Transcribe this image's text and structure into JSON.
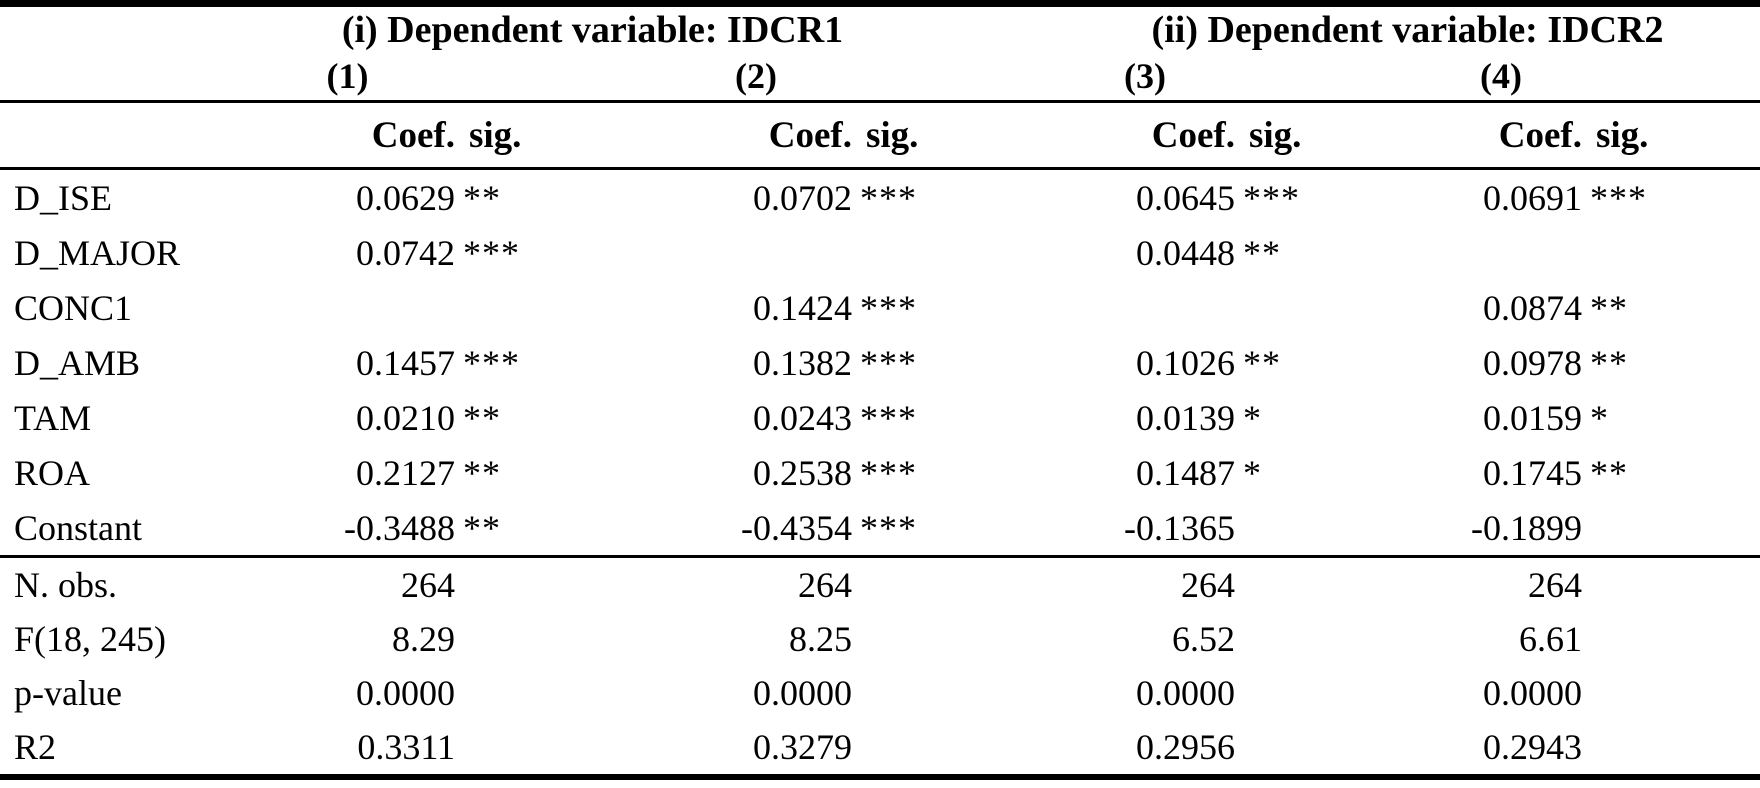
{
  "colors": {
    "text": "#000000",
    "background": "#ffffff"
  },
  "table": {
    "group_headers": [
      {
        "label": "(i) Dependent variable: IDCR1"
      },
      {
        "label": "(ii) Dependent variable: IDCR2"
      }
    ],
    "model_numbers": [
      "(1)",
      "(2)",
      "(3)",
      "(4)"
    ],
    "col_headers": {
      "coef": "Coef.",
      "sig": "sig."
    },
    "coef_rows": [
      {
        "label": "D_ISE",
        "cells": [
          {
            "coef": "0.0629",
            "sig": "**"
          },
          {
            "coef": "0.0702",
            "sig": "***"
          },
          {
            "coef": "0.0645",
            "sig": "***"
          },
          {
            "coef": "0.0691",
            "sig": "***"
          }
        ]
      },
      {
        "label": "D_MAJOR",
        "cells": [
          {
            "coef": "0.0742",
            "sig": "***"
          },
          {
            "coef": "",
            "sig": ""
          },
          {
            "coef": "0.0448",
            "sig": "**"
          },
          {
            "coef": "",
            "sig": ""
          }
        ]
      },
      {
        "label": "CONC1",
        "cells": [
          {
            "coef": "",
            "sig": ""
          },
          {
            "coef": "0.1424",
            "sig": "***"
          },
          {
            "coef": "",
            "sig": ""
          },
          {
            "coef": "0.0874",
            "sig": "**"
          }
        ]
      },
      {
        "label": "D_AMB",
        "cells": [
          {
            "coef": "0.1457",
            "sig": "***"
          },
          {
            "coef": "0.1382",
            "sig": "***"
          },
          {
            "coef": "0.1026",
            "sig": "**"
          },
          {
            "coef": "0.0978",
            "sig": "**"
          }
        ]
      },
      {
        "label": "TAM",
        "cells": [
          {
            "coef": "0.0210",
            "sig": "**"
          },
          {
            "coef": "0.0243",
            "sig": "***"
          },
          {
            "coef": "0.0139",
            "sig": "*"
          },
          {
            "coef": "0.0159",
            "sig": "*"
          }
        ]
      },
      {
        "label": "ROA",
        "cells": [
          {
            "coef": "0.2127",
            "sig": "**"
          },
          {
            "coef": "0.2538",
            "sig": "***"
          },
          {
            "coef": "0.1487",
            "sig": "*"
          },
          {
            "coef": "0.1745",
            "sig": "**"
          }
        ]
      },
      {
        "label": "Constant",
        "cells": [
          {
            "coef": "-0.3488",
            "sig": "**"
          },
          {
            "coef": "-0.4354",
            "sig": "***"
          },
          {
            "coef": "-0.1365",
            "sig": ""
          },
          {
            "coef": "-0.1899",
            "sig": ""
          }
        ]
      }
    ],
    "stat_rows": [
      {
        "label": "N. obs.",
        "values": [
          "264",
          "264",
          "264",
          "264"
        ]
      },
      {
        "label": "F(18, 245)",
        "values": [
          "8.29",
          "8.25",
          "6.52",
          "6.61"
        ]
      },
      {
        "label": "p-value",
        "values": [
          "0.0000",
          "0.0000",
          "0.0000",
          "0.0000"
        ]
      },
      {
        "label": "R2",
        "values": [
          "0.3311",
          "0.3279",
          "0.2956",
          "0.2943"
        ]
      }
    ]
  }
}
